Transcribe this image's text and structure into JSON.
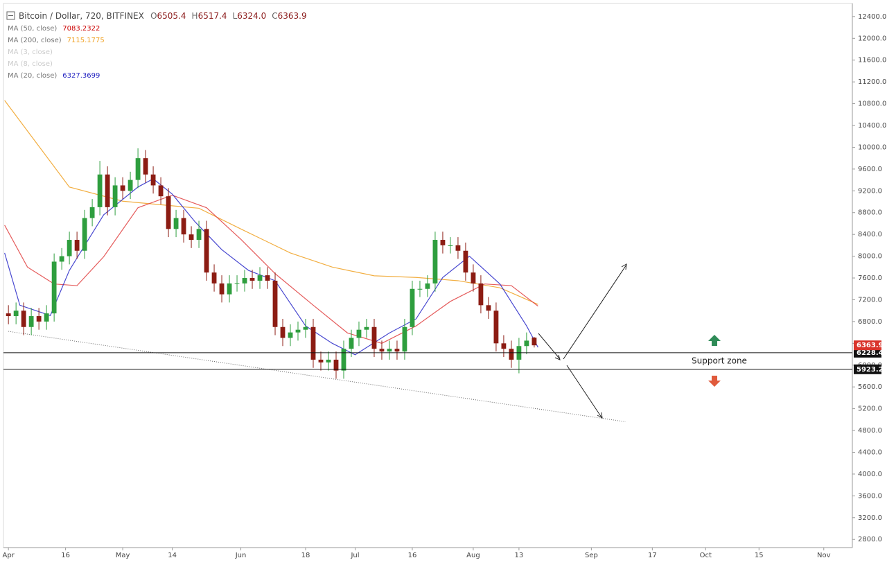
{
  "chart_data": {
    "type": "candlestick",
    "title": "Bitcoin / Dollar, 720, BITFINEX",
    "ohlc_legend": [
      {
        "label": "O",
        "value": "6505.4"
      },
      {
        "label": "H",
        "value": "6517.4"
      },
      {
        "label": "L",
        "value": "6324.0"
      },
      {
        "label": "C",
        "value": "6363.9"
      }
    ],
    "studies": [
      {
        "name": "MA (50, close)",
        "value": "7083.2322",
        "color": "#cc0000"
      },
      {
        "name": "MA (200, close)",
        "value": "7115.1775",
        "color": "#f0a020"
      },
      {
        "name": "MA (3, close)",
        "color": "#cccccc"
      },
      {
        "name": "MA (8, close)",
        "color": "#cccccc"
      },
      {
        "name": "MA (20, close)",
        "value": "6327.3699",
        "color": "#2020c0"
      }
    ],
    "xlim": [
      -1.3,
      221.5
    ],
    "ylim": [
      2650,
      12640
    ],
    "grid": false,
    "up_color": "#2e9e3e",
    "down_color": "#8c1c13",
    "xticks": [
      {
        "value": 0,
        "label": "Apr"
      },
      {
        "value": 15,
        "label": "16"
      },
      {
        "value": 30,
        "label": "May"
      },
      {
        "value": 43,
        "label": "14"
      },
      {
        "value": 61,
        "label": "Jun"
      },
      {
        "value": 78,
        "label": "18"
      },
      {
        "value": 91,
        "label": "Jul"
      },
      {
        "value": 106,
        "label": "16"
      },
      {
        "value": 122,
        "label": "Aug"
      },
      {
        "value": 134,
        "label": "13"
      },
      {
        "value": 153,
        "label": "Sep"
      },
      {
        "value": 169,
        "label": "17"
      },
      {
        "value": 183,
        "label": "Oct"
      },
      {
        "value": 197,
        "label": "15"
      },
      {
        "value": 214,
        "label": "Nov"
      }
    ],
    "yticks": [
      {
        "value": 2800,
        "label": "2800.0"
      },
      {
        "value": 3200,
        "label": "3200.0"
      },
      {
        "value": 3600,
        "label": "3600.0"
      },
      {
        "value": 4000,
        "label": "4000.0"
      },
      {
        "value": 4400,
        "label": "4400.0"
      },
      {
        "value": 4800,
        "label": "4800.0"
      },
      {
        "value": 5200,
        "label": "5200.0"
      },
      {
        "value": 5600,
        "label": "5600.0"
      },
      {
        "value": 6000,
        "label": "6000.0"
      },
      {
        "value": 6400,
        "label": "6400.0"
      },
      {
        "value": 6800,
        "label": "6800.0"
      },
      {
        "value": 7200,
        "label": "7200.0"
      },
      {
        "value": 7600,
        "label": "7600.0"
      },
      {
        "value": 8000,
        "label": "8000.0"
      },
      {
        "value": 8400,
        "label": "8400.0"
      },
      {
        "value": 8800,
        "label": "8800.0"
      },
      {
        "value": 9200,
        "label": "9200.0"
      },
      {
        "value": 9600,
        "label": "9600.0"
      },
      {
        "value": 10000,
        "label": "10000.0"
      },
      {
        "value": 10400,
        "label": "10400.0"
      },
      {
        "value": 10800,
        "label": "10800.0"
      },
      {
        "value": 11200,
        "label": "11200.0"
      },
      {
        "value": 11600,
        "label": "11600.0"
      },
      {
        "value": 12000,
        "label": "12000.0"
      },
      {
        "value": 12400,
        "label": "12400.0"
      }
    ],
    "x": [
      0,
      2,
      4,
      6,
      8,
      10,
      12,
      14,
      16,
      18,
      20,
      22,
      24,
      26,
      28,
      30,
      32,
      34,
      36,
      38,
      40,
      42,
      44,
      46,
      48,
      50,
      52,
      54,
      56,
      58,
      60,
      62,
      64,
      66,
      68,
      70,
      72,
      74,
      76,
      78,
      80,
      82,
      84,
      86,
      88,
      90,
      92,
      94,
      96,
      98,
      100,
      102,
      104,
      106,
      108,
      110,
      112,
      114,
      116,
      118,
      120,
      122,
      124,
      126,
      128,
      130,
      132,
      134,
      136,
      138
    ],
    "open": [
      6950,
      6900,
      7000,
      6700,
      6900,
      6800,
      6950,
      7900,
      8000,
      8300,
      8100,
      8700,
      8900,
      9500,
      8900,
      9300,
      9200,
      9400,
      9800,
      9500,
      9300,
      9100,
      8500,
      8700,
      8400,
      8300,
      8500,
      7700,
      7500,
      7300,
      7500,
      7500,
      7600,
      7550,
      7650,
      7550,
      6700,
      6500,
      6600,
      6650,
      6700,
      6100,
      6050,
      6100,
      5900,
      6300,
      6500,
      6650,
      6700,
      6300,
      6250,
      6300,
      6250,
      6700,
      7400,
      7400,
      7500,
      8300,
      8200,
      8200,
      8100,
      7700,
      7500,
      7100,
      7000,
      6400,
      6300,
      6100,
      6350,
      6505.4
    ],
    "high": [
      7100,
      7150,
      7150,
      7050,
      7050,
      7100,
      8050,
      8150,
      8450,
      8450,
      8850,
      9050,
      9750,
      9650,
      9450,
      9450,
      9550,
      9980,
      9950,
      9650,
      9450,
      9250,
      8850,
      8850,
      8550,
      8650,
      8650,
      7850,
      7650,
      7650,
      7650,
      7750,
      7750,
      7800,
      7800,
      7700,
      6850,
      6750,
      6800,
      6850,
      6850,
      6250,
      6250,
      6250,
      6450,
      6650,
      6800,
      6850,
      6850,
      6450,
      6450,
      6450,
      6850,
      7550,
      7550,
      7650,
      8450,
      8450,
      8350,
      8350,
      8250,
      7850,
      7650,
      7250,
      7150,
      6550,
      6450,
      6500,
      6600,
      6517.4
    ],
    "low": [
      6750,
      6750,
      6550,
      6550,
      6650,
      6650,
      6800,
      7750,
      7850,
      7950,
      7950,
      8550,
      8750,
      8750,
      8750,
      9050,
      9050,
      9250,
      9350,
      9150,
      8950,
      8350,
      8350,
      8250,
      8150,
      8150,
      7550,
      7350,
      7150,
      7150,
      7350,
      7350,
      7400,
      7400,
      7400,
      6550,
      6350,
      6350,
      6450,
      6500,
      5950,
      5900,
      5900,
      5750,
      5750,
      6150,
      6350,
      6500,
      6150,
      6100,
      6100,
      6100,
      6100,
      6550,
      7250,
      7250,
      7350,
      8050,
      8050,
      7950,
      7550,
      7350,
      6950,
      6850,
      6250,
      6150,
      5950,
      5850,
      6200,
      6324
    ],
    "close": [
      6900,
      7000,
      6700,
      6900,
      6800,
      6950,
      7900,
      8000,
      8300,
      8100,
      8700,
      8900,
      9500,
      8900,
      9300,
      9200,
      9400,
      9800,
      9500,
      9300,
      9100,
      8500,
      8700,
      8400,
      8300,
      8500,
      7700,
      7500,
      7300,
      7500,
      7500,
      7600,
      7550,
      7650,
      7550,
      6700,
      6500,
      6600,
      6650,
      6700,
      6100,
      6050,
      6100,
      5900,
      6300,
      6500,
      6650,
      6700,
      6300,
      6250,
      6300,
      6250,
      6700,
      7400,
      7400,
      7500,
      8300,
      8200,
      8200,
      8100,
      7700,
      7500,
      7100,
      7000,
      6400,
      6300,
      6100,
      6350,
      6450,
      6363.9
    ],
    "ma_lines": [
      {
        "color": "#f0a020",
        "x": [
          -1,
          16,
          30,
          50,
          61,
          74,
          85,
          96,
          107,
          118,
          129,
          139
        ],
        "values": [
          10860,
          9270,
          9010,
          8880,
          8500,
          8060,
          7800,
          7640,
          7610,
          7550,
          7420,
          7115
        ]
      },
      {
        "color": "#e04040",
        "x": [
          -1,
          5,
          12,
          18,
          25,
          34,
          43,
          52,
          61,
          70,
          80,
          89,
          98,
          107,
          116,
          125,
          132,
          139
        ],
        "values": [
          8570,
          7800,
          7490,
          7460,
          7990,
          8890,
          9120,
          8890,
          8310,
          7680,
          7100,
          6590,
          6400,
          6720,
          7170,
          7490,
          7460,
          7083
        ]
      },
      {
        "color": "#2828c8",
        "x": [
          -1,
          3,
          11,
          16,
          25,
          34,
          38,
          43,
          49,
          56,
          63,
          70,
          78,
          85,
          91,
          100,
          107,
          114,
          121,
          129,
          136,
          139
        ],
        "values": [
          8060,
          7100,
          6910,
          7740,
          8760,
          9270,
          9420,
          9140,
          8630,
          8120,
          7740,
          7550,
          6720,
          6400,
          6190,
          6590,
          6850,
          7610,
          8000,
          7490,
          6720,
          6327
        ]
      }
    ],
    "trendline": {
      "x": [
        0,
        162
      ],
      "values": [
        6620,
        4960
      ]
    },
    "levels": [
      6228.4,
      5923.2
    ],
    "last_price": 6363.9,
    "annotation": "Support zone"
  }
}
